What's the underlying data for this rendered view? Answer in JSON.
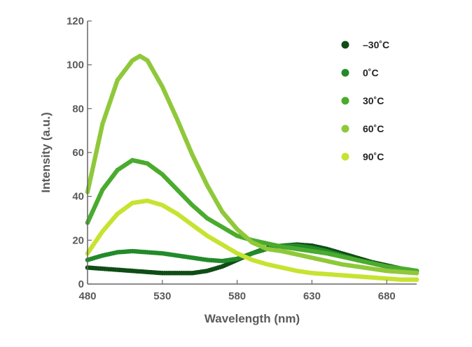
{
  "chart_data": {
    "type": "scatter",
    "title": "",
    "xlabel": "Wavelength (nm)",
    "ylabel": "Intensity (a.u.)",
    "xlim": [
      480,
      700
    ],
    "ylim": [
      0,
      120
    ],
    "x_ticks": [
      480,
      530,
      580,
      630,
      680
    ],
    "y_ticks": [
      0,
      20,
      40,
      60,
      80,
      100,
      120
    ],
    "grid": false,
    "legend_position": "top-right",
    "series": [
      {
        "name": "–30˚C",
        "color": "#0f4d14",
        "x": [
          480,
          490,
          500,
          510,
          520,
          530,
          540,
          550,
          560,
          570,
          580,
          590,
          600,
          610,
          620,
          630,
          640,
          650,
          660,
          670,
          680,
          690,
          700
        ],
        "y": [
          7.5,
          7,
          6.5,
          6,
          5.5,
          5,
          5,
          5,
          6,
          8,
          11,
          14,
          16.5,
          17.5,
          18,
          17.5,
          16,
          14,
          12,
          10,
          8.5,
          7,
          6
        ]
      },
      {
        "name": "0˚C",
        "color": "#238a2a",
        "x": [
          480,
          490,
          500,
          510,
          520,
          530,
          540,
          550,
          560,
          570,
          580,
          590,
          600,
          610,
          620,
          630,
          640,
          650,
          660,
          670,
          680,
          690,
          700
        ],
        "y": [
          11,
          13,
          14.5,
          15,
          14.5,
          14,
          13,
          12,
          11,
          10.5,
          11.5,
          14,
          16,
          17.5,
          17.5,
          16.5,
          15,
          13,
          11,
          9.5,
          8,
          7,
          6
        ]
      },
      {
        "name": "30˚C",
        "color": "#4aab2e",
        "x": [
          480,
          490,
          500,
          510,
          520,
          530,
          540,
          550,
          560,
          570,
          580,
          590,
          600,
          610,
          620,
          630,
          640,
          650,
          660,
          670,
          680,
          690,
          700
        ],
        "y": [
          28,
          43,
          52,
          56.5,
          55,
          50,
          43,
          36,
          30,
          26,
          22,
          20,
          18.5,
          17,
          16,
          15,
          14,
          12.5,
          11,
          9.5,
          8,
          7,
          6
        ]
      },
      {
        "name": "60˚C",
        "color": "#8fc83a",
        "x": [
          480,
          490,
          500,
          510,
          515,
          520,
          530,
          540,
          550,
          560,
          570,
          580,
          590,
          600,
          610,
          620,
          630,
          640,
          650,
          660,
          670,
          680,
          690,
          700
        ],
        "y": [
          42,
          73,
          93,
          102,
          104,
          102,
          90,
          75,
          59,
          45,
          33,
          25,
          19,
          16,
          15,
          13.5,
          12,
          10.5,
          9,
          8,
          7,
          6,
          5.5,
          5
        ]
      },
      {
        "name": "90˚C",
        "color": "#c7e332",
        "x": [
          480,
          490,
          500,
          510,
          520,
          530,
          540,
          550,
          560,
          570,
          580,
          590,
          600,
          610,
          620,
          630,
          640,
          650,
          660,
          670,
          680,
          690,
          700
        ],
        "y": [
          14,
          24,
          32,
          37,
          38,
          36,
          32,
          27,
          22,
          18,
          14,
          11,
          9,
          7.5,
          6,
          5,
          4.5,
          4,
          3.5,
          3,
          2.5,
          2,
          2
        ]
      }
    ]
  }
}
